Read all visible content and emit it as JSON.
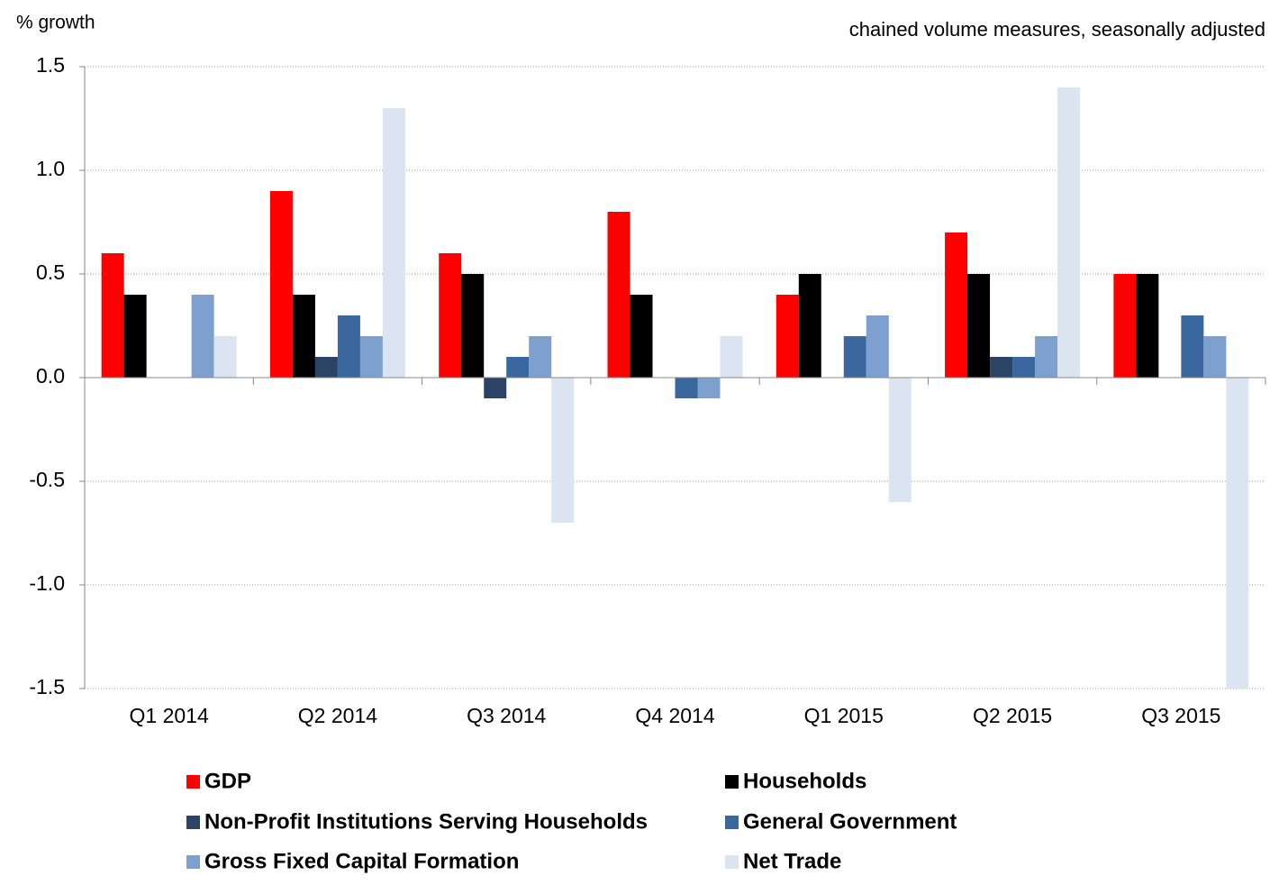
{
  "chart_data": {
    "type": "bar",
    "y_label": "% growth",
    "subtitle": "chained volume measures, seasonally adjusted",
    "categories": [
      "Q1 2014",
      "Q2 2014",
      "Q3 2014",
      "Q4 2014",
      "Q1 2015",
      "Q2 2015",
      "Q3 2015"
    ],
    "series": [
      {
        "name": "GDP",
        "color": "#ff0000",
        "values": [
          0.6,
          0.9,
          0.6,
          0.8,
          0.4,
          0.7,
          0.5
        ]
      },
      {
        "name": "Households",
        "color": "#000000",
        "values": [
          0.4,
          0.4,
          0.5,
          0.4,
          0.5,
          0.5,
          0.5
        ]
      },
      {
        "name": "Non-Profit Institutions Serving Households",
        "color": "#2b4466",
        "values": [
          0,
          0.1,
          -0.1,
          0,
          0,
          0.1,
          0
        ]
      },
      {
        "name": "General Government",
        "color": "#3a679e",
        "values": [
          0,
          0.3,
          0.1,
          -0.1,
          0.2,
          0.1,
          0.3
        ]
      },
      {
        "name": "Gross Fixed Capital Formation",
        "color": "#7ea0cf",
        "values": [
          0.4,
          0.2,
          0.2,
          -0.1,
          0.3,
          0.2,
          0.2
        ]
      },
      {
        "name": "Net Trade",
        "color": "#dbe4f1",
        "values": [
          0.2,
          1.3,
          -0.7,
          0.2,
          -0.6,
          1.4,
          -1.5
        ]
      }
    ],
    "ylim": [
      -1.5,
      1.5
    ],
    "yticks": [
      -1.5,
      {
        "value": -1,
        "label": "-1.0"
      },
      -0.5,
      {
        "value": 0,
        "label": "0.0"
      },
      0.5,
      {
        "value": 1,
        "label": "1.0"
      },
      1.5
    ],
    "grid": true,
    "legend": "bottom"
  }
}
